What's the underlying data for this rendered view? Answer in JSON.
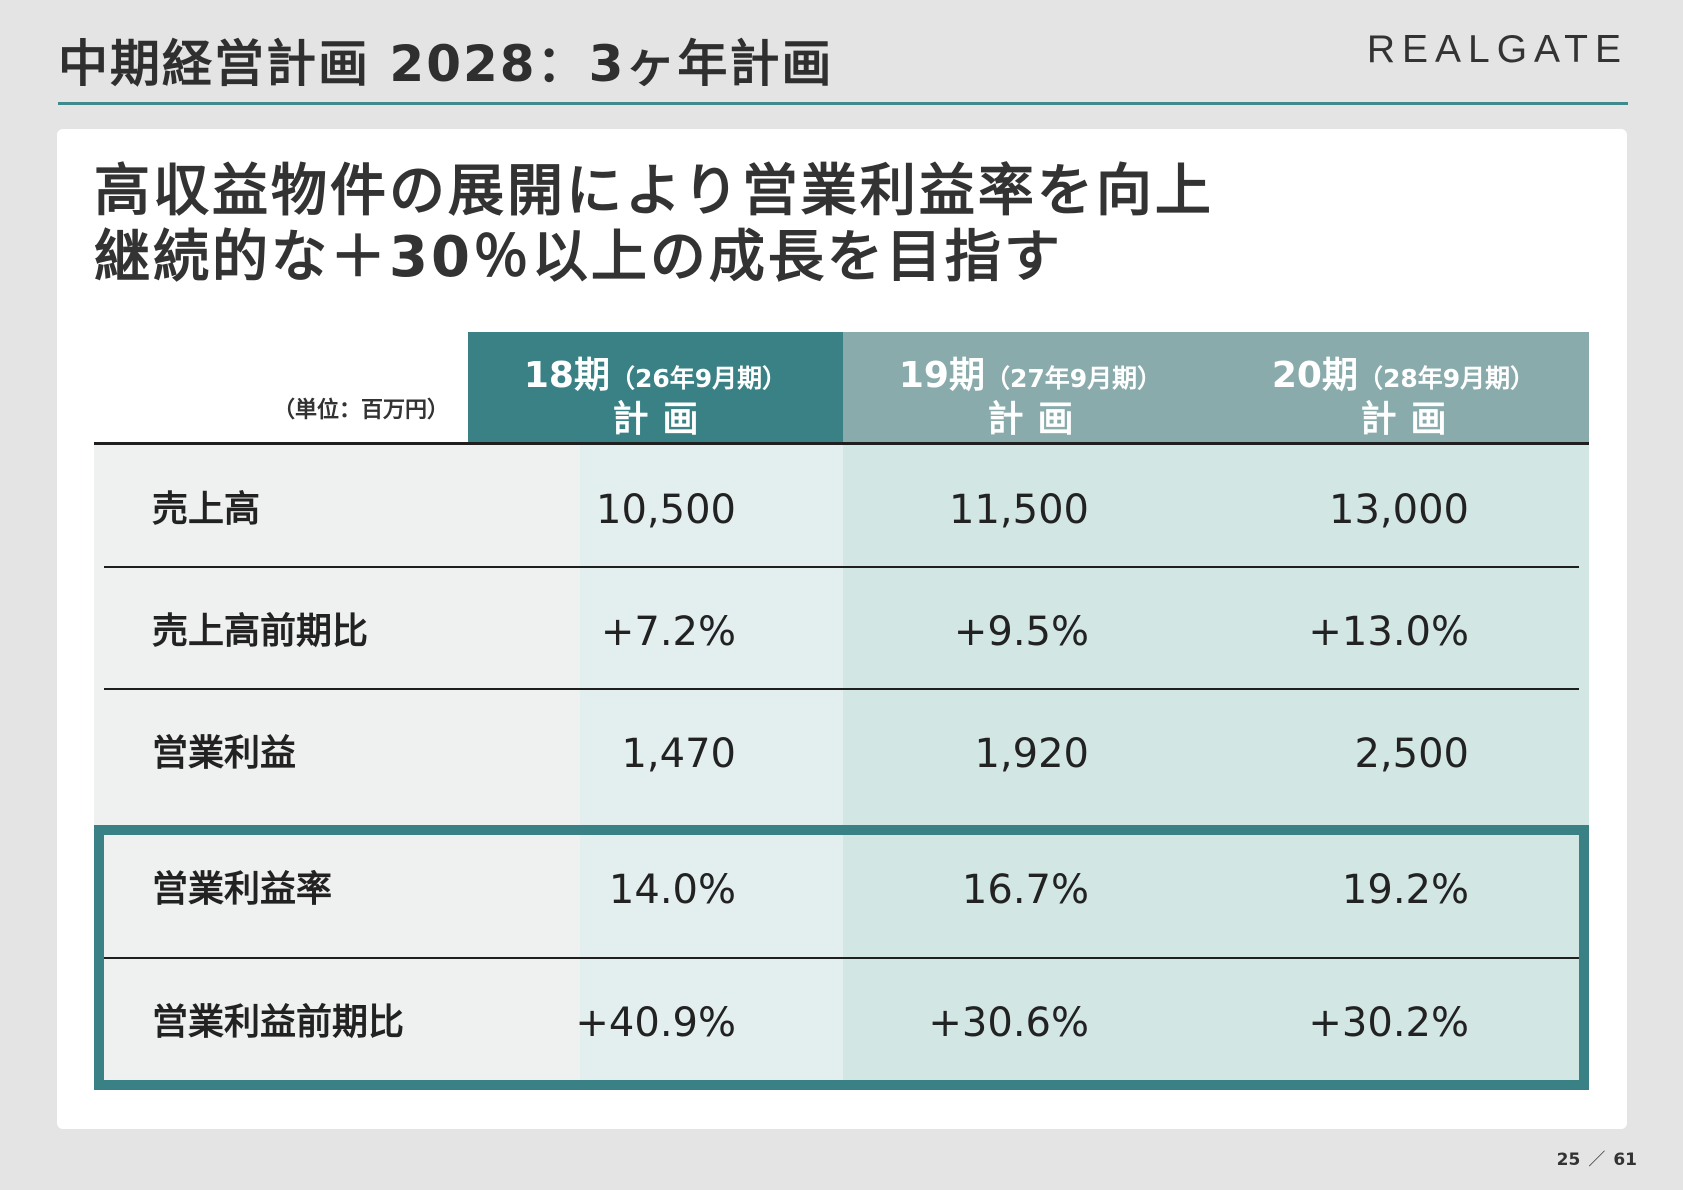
{
  "header": {
    "title": "中期経営計画 2028：3ヶ年計画",
    "brand": "REALGATE"
  },
  "headline": {
    "line1": "高収益物件の展開により営業利益率を向上",
    "line2": "継続的な＋30％以上の成長を目指す"
  },
  "table": {
    "unit": "（単位：百万円）",
    "columns": [
      {
        "period": "18期",
        "fiscal": "（26年9月期）",
        "plan": "計画"
      },
      {
        "period": "19期",
        "fiscal": "（27年9月期）",
        "plan": "計画"
      },
      {
        "period": "20期",
        "fiscal": "（28年9月期）",
        "plan": "計画"
      }
    ],
    "rows": [
      {
        "label": "売上高",
        "values": [
          "10,500",
          "11,500",
          "13,000"
        ]
      },
      {
        "label": "売上高前期比",
        "values": [
          "+7.2%",
          "+9.5%",
          "+13.0%"
        ]
      },
      {
        "label": "営業利益",
        "values": [
          "1,470",
          "1,920",
          "2,500"
        ]
      },
      {
        "label": "営業利益率",
        "values": [
          "14.0%",
          "16.7%",
          "19.2%"
        ]
      },
      {
        "label": "営業利益前期比",
        "values": [
          "+40.9%",
          "+30.6%",
          "+30.2%"
        ]
      }
    ]
  },
  "pagination": {
    "current": "25",
    "separator": "／",
    "total": "61"
  },
  "colors": {
    "accent_teal": "#3a8185",
    "header_gray_teal": "#8aabab",
    "rule_teal": "#3e8a8c"
  }
}
